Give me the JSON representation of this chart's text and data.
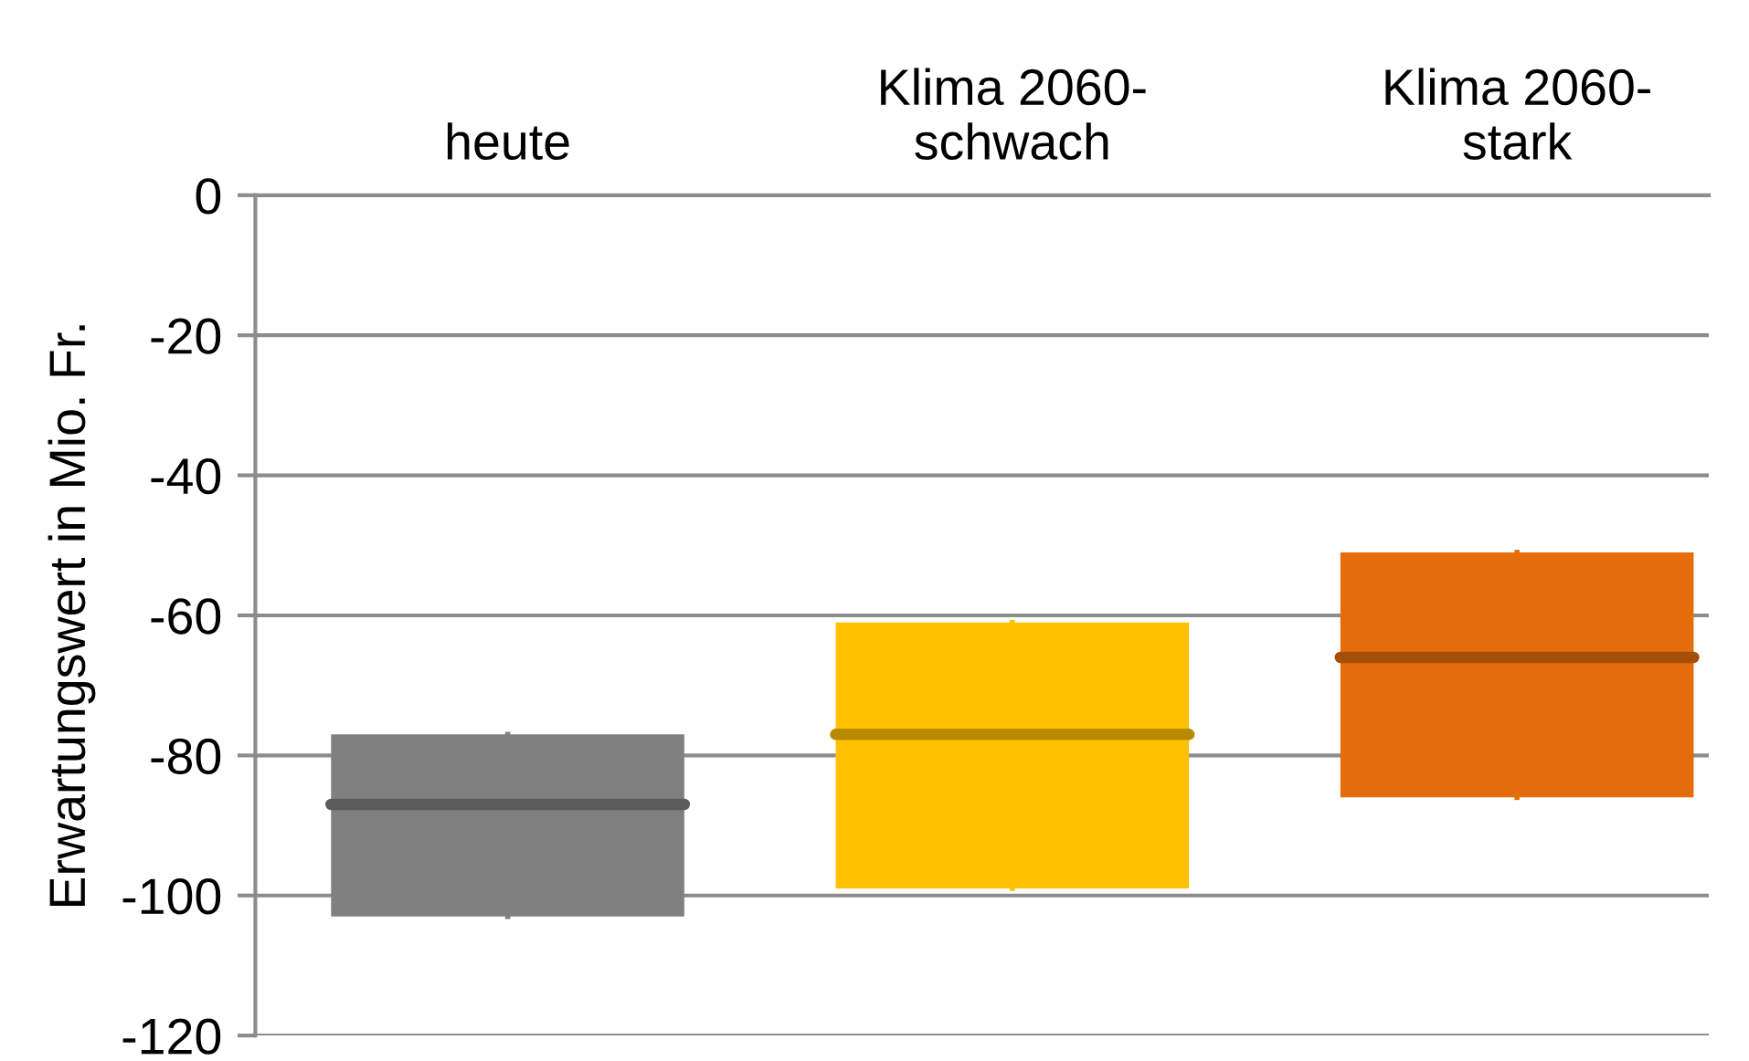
{
  "chart_data": {
    "type": "box",
    "ylabel": "Erwartungswert in Mio. Fr.",
    "categories": [
      "heute",
      "Klima 2060-\nschwach",
      "Klima 2060-\nstark"
    ],
    "boxes": [
      {
        "low": -103,
        "q1": -103,
        "median": -87,
        "q3": -77,
        "high": -77
      },
      {
        "low": -99,
        "q1": -99,
        "median": -77,
        "q3": -61,
        "high": -61
      },
      {
        "low": -86,
        "q1": -86,
        "median": -66,
        "q3": -51,
        "high": -51
      }
    ],
    "colors": [
      "#808080",
      "#ffc000",
      "#e46c0a"
    ],
    "ylim": [
      -120,
      0
    ],
    "yticks": [
      -120,
      -100,
      -80,
      -60,
      -40,
      -20,
      0
    ],
    "grid": "y"
  }
}
